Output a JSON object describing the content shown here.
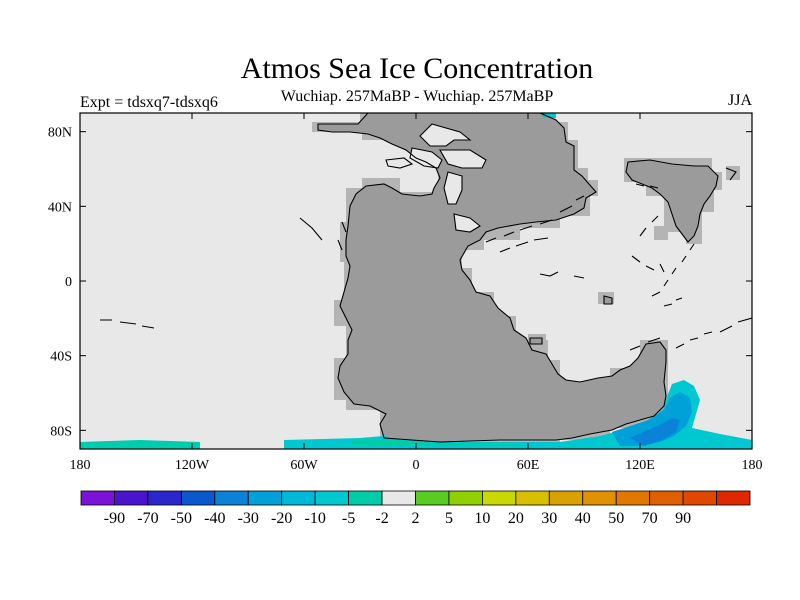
{
  "title": "Atmos Sea Ice Concentration",
  "subtitle": "Wuchiap. 257MaBP - Wuchiap. 257MaBP",
  "experiment": "Expt = tdsxq7-tdsxq6",
  "season": "JJA",
  "colors": {
    "ocean": "#e8e8e8",
    "land": "#9b9b9b",
    "land_mask_edge": "#b4b4b4"
  },
  "map": {
    "x_ticks": [
      {
        "lon": -180,
        "label": "180"
      },
      {
        "lon": -120,
        "label": "120W"
      },
      {
        "lon": -60,
        "label": "60W"
      },
      {
        "lon": 0,
        "label": "0"
      },
      {
        "lon": 60,
        "label": "60E"
      },
      {
        "lon": 120,
        "label": "120E"
      },
      {
        "lon": 180,
        "label": "180"
      }
    ],
    "y_ticks": [
      {
        "lat": 80,
        "label": "80N"
      },
      {
        "lat": 40,
        "label": "40N"
      },
      {
        "lat": 0,
        "label": "0"
      },
      {
        "lat": -40,
        "label": "40S"
      },
      {
        "lat": -80,
        "label": "80S"
      }
    ]
  },
  "colorbar": {
    "colors": [
      "#7a12d8",
      "#4a14cc",
      "#2a28cc",
      "#0a58cc",
      "#0a82d8",
      "#00a0d8",
      "#00b8d8",
      "#00c8d0",
      "#00cca8",
      "#e8e8e8",
      "#58cc20",
      "#90d000",
      "#c8d800",
      "#d8c000",
      "#d8a000",
      "#e09000",
      "#e07800",
      "#e06000",
      "#e04800",
      "#e02800"
    ],
    "labels": [
      "-90",
      "-70",
      "-50",
      "-40",
      "-30",
      "-20",
      "-10",
      "-5",
      "-2",
      "2",
      "5",
      "10",
      "20",
      "30",
      "40",
      "50",
      "70",
      "90"
    ]
  }
}
